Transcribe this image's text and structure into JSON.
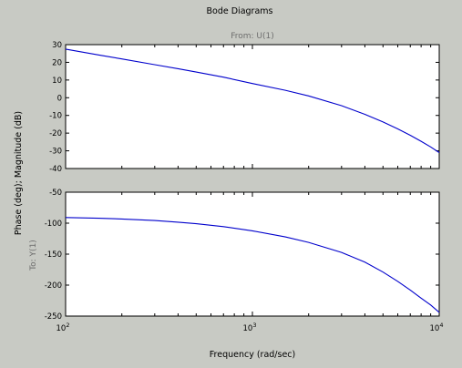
{
  "figure": {
    "title": "Bode Diagrams",
    "from_label": "From: U(1)",
    "to_label": "To: Y(1)",
    "ylabel": "Phase (deg); Magnitude (dB)",
    "xlabel": "Frequency (rad/sec)",
    "colors": {
      "background": "#c8cac4",
      "plot_bg": "#ffffff",
      "line": "#0000cc",
      "axis": "#000000"
    }
  },
  "chart_data": [
    {
      "type": "line",
      "panel": "magnitude",
      "xscale": "log",
      "xlim": [
        100,
        10000
      ],
      "ylim": [
        -40,
        30
      ],
      "yticks": [
        30,
        20,
        10,
        0,
        -10,
        -20,
        -30,
        -40
      ],
      "xticks": [
        {
          "base": "10",
          "exp": "2",
          "value": 100
        },
        {
          "base": "10",
          "exp": "3",
          "value": 1000
        },
        {
          "base": "10",
          "exp": "4",
          "value": 10000
        }
      ],
      "grid": false,
      "series": [
        {
          "x": [
            100,
            150,
            200,
            300,
            400,
            500,
            700,
            1000,
            1500,
            2000,
            3000,
            4000,
            5000,
            6000,
            7000,
            8000,
            9000,
            10000
          ],
          "y": [
            27.5,
            24.2,
            21.9,
            18.7,
            16.4,
            14.5,
            11.6,
            8.0,
            4.2,
            1.0,
            -4.5,
            -9.4,
            -13.7,
            -17.6,
            -21.2,
            -24.6,
            -27.8,
            -31.0
          ]
        }
      ]
    },
    {
      "type": "line",
      "panel": "phase",
      "xscale": "log",
      "xlim": [
        100,
        10000
      ],
      "ylim": [
        -250,
        -50
      ],
      "yticks": [
        -50,
        -100,
        -150,
        -200,
        -250
      ],
      "xticks": [
        {
          "base": "10",
          "exp": "2",
          "value": 100
        },
        {
          "base": "10",
          "exp": "3",
          "value": 1000
        },
        {
          "base": "10",
          "exp": "4",
          "value": 10000
        }
      ],
      "grid": false,
      "series": [
        {
          "x": [
            100,
            150,
            200,
            300,
            400,
            500,
            700,
            1000,
            1500,
            2000,
            3000,
            4000,
            5000,
            6000,
            7000,
            8000,
            9000,
            10000
          ],
          "y": [
            -90.9,
            -92.0,
            -93.2,
            -95.8,
            -98.4,
            -100.9,
            -105.6,
            -112.3,
            -122.2,
            -131.1,
            -147.2,
            -163.0,
            -179.0,
            -194.0,
            -208.0,
            -221.0,
            -232.0,
            -244.0
          ]
        }
      ]
    }
  ]
}
